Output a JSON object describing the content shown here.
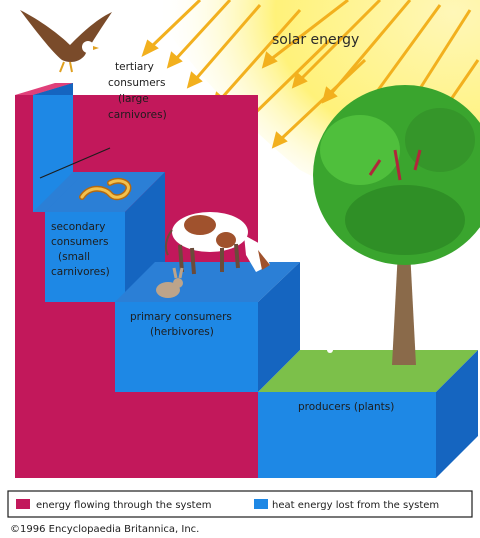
{
  "solar_label": "solar energy",
  "levels": {
    "tertiary": [
      "tertiary",
      "consumers",
      "(large",
      "carnivores)"
    ],
    "secondary": [
      "secondary",
      "consumers",
      "(small",
      "carnivores)"
    ],
    "primary": [
      "primary consumers",
      "(herbivores)"
    ],
    "producers": [
      "producers (plants)"
    ]
  },
  "legend": {
    "flow": "energy flowing through the system",
    "heat": "heat energy lost from the system"
  },
  "copyright": "©1996 Encyclopaedia Britannica, Inc.",
  "colors": {
    "energy_flow": "#c2185b",
    "heat_loss": "#1e88e5",
    "heat_top": "#2b7fd6",
    "heat_shade": "#1565c0",
    "sun": "#fff27a",
    "ray": "#f2b01e",
    "grass": "#7cc04a",
    "tree": "#3aa52e"
  },
  "icons": [
    "eagle-icon",
    "snake-icon",
    "cow-icon",
    "rabbit-icon",
    "tree-icon",
    "sun-rays-icon"
  ]
}
